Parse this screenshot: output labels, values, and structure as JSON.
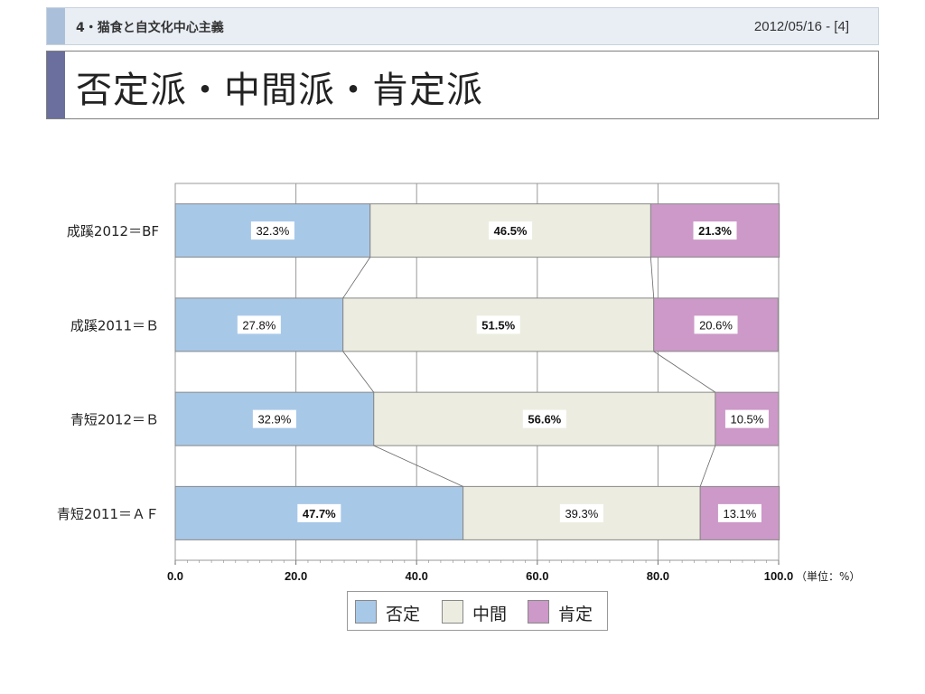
{
  "header": {
    "section": "4・猫食と自文化中心主義",
    "date": "2012/05/16 - [4]"
  },
  "title": "否定派・中間派・肯定派",
  "chart_data": {
    "type": "bar",
    "orientation": "horizontal",
    "stacked": true,
    "categories": [
      "成蹊2012＝BF",
      "成蹊2011＝Ｂ",
      "青短2012＝Ｂ",
      "青短2011＝ＡＦ"
    ],
    "series": [
      {
        "name": "否定",
        "values": [
          32.3,
          27.8,
          32.9,
          47.7
        ],
        "labels": [
          "32.3%",
          "27.8%",
          "32.9%",
          "47.7%"
        ],
        "bold": [
          false,
          false,
          false,
          true
        ],
        "color": "#a8c8e8"
      },
      {
        "name": "中間",
        "values": [
          46.5,
          51.5,
          56.6,
          39.3
        ],
        "labels": [
          "46.5%",
          "51.5%",
          "56.6%",
          "39.3%"
        ],
        "bold": [
          true,
          true,
          true,
          false
        ],
        "color": "#ecede0"
      },
      {
        "name": "肯定",
        "values": [
          21.3,
          20.6,
          10.5,
          13.1
        ],
        "labels": [
          "21.3%",
          "20.6%",
          "10.5%",
          "13.1%"
        ],
        "bold": [
          true,
          false,
          false,
          false
        ],
        "color": "#cc99c8"
      }
    ],
    "xlim": [
      0,
      100
    ],
    "x_ticks": [
      "0.0",
      "20.0",
      "40.0",
      "60.0",
      "80.0",
      "100.0"
    ],
    "x_unit": "（単位：%）",
    "grid": true,
    "legend_position": "bottom-center"
  }
}
